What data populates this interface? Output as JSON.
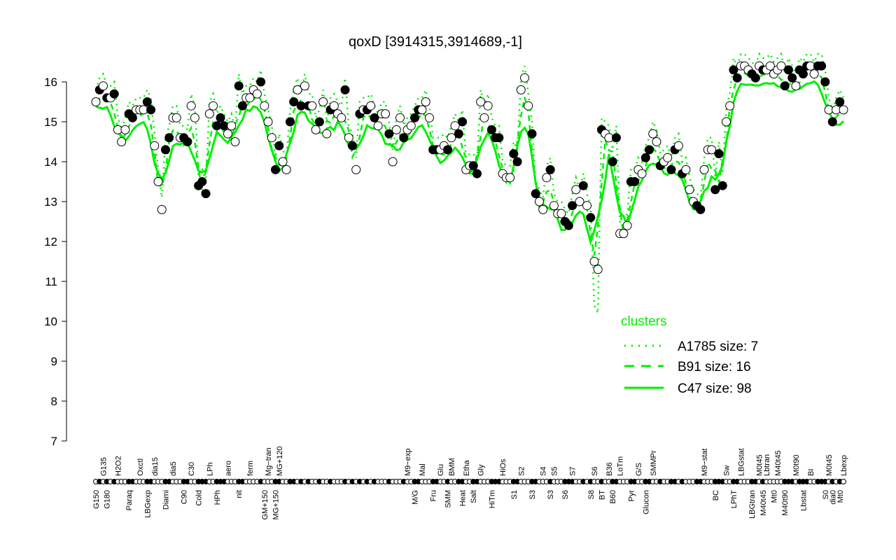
{
  "chart_data": {
    "type": "scatter",
    "title": "qoxD [3914315,3914689,-1]",
    "xlabel": "",
    "ylabel": "",
    "ylim": [
      7,
      16.6
    ],
    "yticks": [
      7,
      8,
      9,
      10,
      11,
      12,
      13,
      14,
      15,
      16
    ],
    "grid": false,
    "legend": {
      "title": "clusters",
      "placement": "bottom-right",
      "color": "#00ee00",
      "entries": [
        {
          "label": "A1785 size: 7",
          "style": "dotted"
        },
        {
          "label": "B91 size: 16",
          "style": "dashed"
        },
        {
          "label": "C47 size: 98",
          "style": "solid"
        }
      ]
    },
    "points": [
      [
        15.5,
        0,
        "G150",
        "b"
      ],
      [
        15.8,
        1,
        "",
        ""
      ],
      [
        15.9,
        0,
        "G135",
        "t"
      ],
      [
        15.6,
        1,
        "G180",
        "b"
      ],
      [
        15.6,
        0,
        "",
        ""
      ],
      [
        15.7,
        1,
        "",
        ""
      ],
      [
        14.8,
        0,
        "H2O2",
        "t"
      ],
      [
        14.5,
        0,
        "",
        ""
      ],
      [
        14.8,
        0,
        "",
        ""
      ],
      [
        15.2,
        1,
        "Paraq",
        "b"
      ],
      [
        15.1,
        1,
        "",
        ""
      ],
      [
        15.3,
        0,
        "",
        ""
      ],
      [
        15.3,
        0,
        "Oxctl",
        "t"
      ],
      [
        15.3,
        0,
        "",
        ""
      ],
      [
        15.5,
        1,
        "LBGexp",
        "b"
      ],
      [
        15.3,
        1,
        "",
        ""
      ],
      [
        14.4,
        0,
        "dia15",
        "t"
      ],
      [
        13.5,
        0,
        "",
        ""
      ],
      [
        12.8,
        0,
        "",
        ""
      ],
      [
        14.3,
        1,
        "Diami",
        "b"
      ],
      [
        14.6,
        1,
        "",
        ""
      ],
      [
        15.1,
        0,
        "dia5",
        "t"
      ],
      [
        15.1,
        0,
        "",
        ""
      ],
      [
        14.6,
        0,
        "",
        ""
      ],
      [
        14.6,
        1,
        "C90",
        "b"
      ],
      [
        14.5,
        1,
        "",
        ""
      ],
      [
        15.4,
        0,
        "C30",
        "t"
      ],
      [
        15.1,
        0,
        "",
        ""
      ],
      [
        13.4,
        1,
        "Cold",
        "b"
      ],
      [
        13.5,
        1,
        "",
        ""
      ],
      [
        13.2,
        1,
        "",
        ""
      ],
      [
        15.2,
        0,
        "LPh",
        "t"
      ],
      [
        15.4,
        0,
        "",
        ""
      ],
      [
        14.9,
        1,
        "HPh",
        "b"
      ],
      [
        15.1,
        1,
        "",
        ""
      ],
      [
        14.9,
        1,
        "",
        ""
      ],
      [
        14.7,
        0,
        "aero",
        "t"
      ],
      [
        14.9,
        0,
        "",
        ""
      ],
      [
        14.5,
        0,
        "",
        ""
      ],
      [
        15.9,
        1,
        "nit",
        "b"
      ],
      [
        15.4,
        1,
        "",
        ""
      ],
      [
        15.6,
        0,
        "",
        ""
      ],
      [
        15.6,
        0,
        "ferm",
        "t"
      ],
      [
        15.8,
        0,
        "",
        ""
      ],
      [
        15.7,
        0,
        "",
        ""
      ],
      [
        16.0,
        1,
        "",
        ""
      ],
      [
        15.4,
        0,
        "GM+150",
        "b"
      ],
      [
        15.0,
        0,
        "Mg−tran",
        "t"
      ],
      [
        14.6,
        0,
        "",
        ""
      ],
      [
        13.8,
        1,
        "MG+150",
        "b"
      ],
      [
        14.4,
        1,
        "MG+120",
        "t"
      ],
      [
        14.0,
        0,
        "",
        ""
      ],
      [
        13.8,
        0,
        "",
        ""
      ],
      [
        15.0,
        1,
        "",
        ""
      ],
      [
        15.5,
        1,
        "",
        ""
      ],
      [
        15.8,
        0,
        "",
        ""
      ],
      [
        15.4,
        1,
        "",
        ""
      ],
      [
        15.9,
        0,
        "",
        ""
      ],
      [
        15.4,
        1,
        "",
        ""
      ],
      [
        15.4,
        0,
        "",
        ""
      ],
      [
        14.8,
        0,
        "",
        ""
      ],
      [
        15.0,
        1,
        "",
        ""
      ],
      [
        15.5,
        0,
        "",
        ""
      ],
      [
        14.7,
        0,
        "",
        ""
      ],
      [
        15.3,
        1,
        "",
        ""
      ],
      [
        15.4,
        0,
        "",
        ""
      ],
      [
        15.2,
        0,
        "",
        ""
      ],
      [
        15.1,
        0,
        "",
        ""
      ],
      [
        15.8,
        1,
        "",
        ""
      ],
      [
        14.6,
        0,
        "",
        ""
      ],
      [
        14.4,
        1,
        "",
        ""
      ],
      [
        13.8,
        0,
        "",
        ""
      ],
      [
        15.2,
        1,
        "",
        ""
      ],
      [
        15.3,
        0,
        "",
        ""
      ],
      [
        15.3,
        1,
        "",
        ""
      ],
      [
        15.4,
        0,
        "",
        ""
      ],
      [
        15.1,
        1,
        "",
        ""
      ],
      [
        14.9,
        0,
        "",
        ""
      ],
      [
        15.2,
        0,
        "",
        ""
      ],
      [
        15.2,
        0,
        "",
        ""
      ],
      [
        14.7,
        1,
        "",
        ""
      ],
      [
        14.0,
        0,
        "",
        ""
      ],
      [
        14.8,
        0,
        "",
        ""
      ],
      [
        15.1,
        0,
        "",
        ""
      ],
      [
        14.6,
        1,
        "",
        ""
      ],
      [
        14.8,
        0,
        "M9−exp",
        "t"
      ],
      [
        14.9,
        0,
        "",
        ""
      ],
      [
        15.1,
        1,
        "M/G",
        "b"
      ],
      [
        15.3,
        1,
        "",
        ""
      ],
      [
        15.3,
        0,
        "Mal",
        "t"
      ],
      [
        15.5,
        0,
        "",
        ""
      ],
      [
        15.1,
        0,
        "",
        ""
      ],
      [
        14.3,
        1,
        "Fru",
        "b"
      ],
      [
        14.3,
        1,
        "",
        ""
      ],
      [
        14.3,
        0,
        "Glu",
        "t"
      ],
      [
        14.4,
        0,
        "",
        ""
      ],
      [
        14.3,
        1,
        "SMM",
        "b"
      ],
      [
        14.6,
        0,
        "BMM",
        "t"
      ],
      [
        14.9,
        0,
        "",
        ""
      ],
      [
        14.7,
        1,
        "",
        ""
      ],
      [
        15.0,
        1,
        "Heat",
        "b"
      ],
      [
        13.8,
        0,
        "Etha",
        "t"
      ],
      [
        13.9,
        0,
        "",
        ""
      ],
      [
        13.9,
        1,
        "Salt",
        "b"
      ],
      [
        13.7,
        1,
        "",
        ""
      ],
      [
        15.5,
        0,
        "Gly",
        "t"
      ],
      [
        15.1,
        0,
        "",
        ""
      ],
      [
        15.4,
        0,
        "",
        ""
      ],
      [
        14.8,
        1,
        "HiTm",
        "b"
      ],
      [
        14.6,
        1,
        "",
        ""
      ],
      [
        14.6,
        1,
        "",
        ""
      ],
      [
        13.7,
        0,
        "HiOs",
        "t"
      ],
      [
        13.6,
        0,
        "",
        ""
      ],
      [
        13.6,
        0,
        "",
        ""
      ],
      [
        14.2,
        1,
        "S1",
        "b"
      ],
      [
        14.0,
        1,
        "",
        ""
      ],
      [
        15.8,
        0,
        "S2",
        "t"
      ],
      [
        16.1,
        0,
        "",
        ""
      ],
      [
        15.4,
        0,
        "",
        ""
      ],
      [
        14.7,
        1,
        "S3",
        "b"
      ],
      [
        13.2,
        1,
        "",
        ""
      ],
      [
        13.0,
        0,
        "",
        ""
      ],
      [
        12.8,
        0,
        "S4",
        "t"
      ],
      [
        13.6,
        0,
        "",
        ""
      ],
      [
        13.8,
        1,
        "S3",
        "b"
      ],
      [
        12.9,
        0,
        "S5",
        "t"
      ],
      [
        12.7,
        0,
        "",
        ""
      ],
      [
        12.7,
        0,
        "",
        ""
      ],
      [
        12.5,
        1,
        "S6",
        "b"
      ],
      [
        12.4,
        1,
        "",
        ""
      ],
      [
        12.9,
        1,
        "S7",
        "t"
      ],
      [
        13.3,
        0,
        "",
        ""
      ],
      [
        13.0,
        0,
        "",
        ""
      ],
      [
        13.4,
        1,
        "",
        ""
      ],
      [
        12.9,
        0,
        "",
        ""
      ],
      [
        12.6,
        1,
        "S8",
        "b"
      ],
      [
        11.5,
        0,
        "S6",
        "t"
      ],
      [
        11.3,
        0,
        "",
        ""
      ],
      [
        14.8,
        1,
        "BT",
        "b"
      ],
      [
        14.7,
        0,
        "",
        ""
      ],
      [
        14.6,
        0,
        "B36",
        "t"
      ],
      [
        14.0,
        1,
        "B60",
        "b"
      ],
      [
        14.6,
        1,
        "",
        ""
      ],
      [
        12.2,
        0,
        "LoTm",
        "t"
      ],
      [
        12.2,
        0,
        "",
        ""
      ],
      [
        12.4,
        0,
        "",
        ""
      ],
      [
        13.5,
        1,
        "Pyr",
        "b"
      ],
      [
        13.5,
        1,
        "",
        ""
      ],
      [
        13.8,
        0,
        "G/S",
        "t"
      ],
      [
        13.7,
        0,
        "",
        ""
      ],
      [
        14.1,
        1,
        "Glucon",
        "b"
      ],
      [
        14.3,
        1,
        "",
        ""
      ],
      [
        14.7,
        0,
        "SMMPr",
        "t"
      ],
      [
        14.5,
        0,
        "",
        ""
      ],
      [
        13.9,
        1,
        "",
        ""
      ],
      [
        14.0,
        0,
        "",
        ""
      ],
      [
        14.1,
        0,
        "",
        ""
      ],
      [
        13.8,
        1,
        "",
        ""
      ],
      [
        14.3,
        1,
        "",
        ""
      ],
      [
        14.4,
        0,
        "",
        ""
      ],
      [
        13.7,
        1,
        "",
        ""
      ],
      [
        13.8,
        0,
        "",
        ""
      ],
      [
        13.3,
        0,
        "",
        ""
      ],
      [
        13.0,
        0,
        "",
        ""
      ],
      [
        12.9,
        1,
        "",
        ""
      ],
      [
        12.8,
        1,
        "",
        ""
      ],
      [
        13.8,
        0,
        "M9−stat",
        "t"
      ],
      [
        14.3,
        0,
        "",
        ""
      ],
      [
        14.3,
        0,
        "",
        ""
      ],
      [
        13.3,
        1,
        "BC",
        "b"
      ],
      [
        14.2,
        1,
        "",
        ""
      ],
      [
        13.4,
        1,
        "",
        ""
      ],
      [
        15.0,
        0,
        "Sw",
        "t"
      ],
      [
        15.4,
        0,
        "",
        ""
      ],
      [
        16.3,
        1,
        "LPhT",
        "b"
      ],
      [
        16.1,
        1,
        "",
        ""
      ],
      [
        16.4,
        0,
        "LBGstat",
        "t"
      ],
      [
        16.4,
        0,
        "",
        ""
      ],
      [
        16.3,
        0,
        "",
        ""
      ],
      [
        16.2,
        1,
        "LBGtran",
        "b"
      ],
      [
        16.1,
        1,
        "",
        ""
      ],
      [
        16.4,
        0,
        "M0t45",
        "t"
      ],
      [
        16.3,
        1,
        "M40t45",
        "b"
      ],
      [
        16.3,
        0,
        "Lbtran",
        "t"
      ],
      [
        16.4,
        0,
        "",
        ""
      ],
      [
        16.2,
        0,
        "Mt0",
        "b"
      ],
      [
        16.3,
        0,
        "M40t45",
        "t"
      ],
      [
        16.4,
        0,
        "",
        ""
      ],
      [
        15.9,
        1,
        "M40t90",
        "b"
      ],
      [
        16.3,
        1,
        "",
        ""
      ],
      [
        16.1,
        1,
        "",
        ""
      ],
      [
        15.9,
        0,
        "M0t90",
        "t"
      ],
      [
        16.3,
        1,
        "",
        ""
      ],
      [
        16.2,
        1,
        "Lbstat",
        "b"
      ],
      [
        16.4,
        1,
        "",
        ""
      ],
      [
        16.4,
        0,
        "BI",
        "t"
      ],
      [
        16.2,
        0,
        "",
        ""
      ],
      [
        16.4,
        1,
        "",
        ""
      ],
      [
        16.4,
        1,
        "",
        ""
      ],
      [
        16.0,
        1,
        "S0",
        "b"
      ],
      [
        15.3,
        0,
        "M0t45",
        "t"
      ],
      [
        15.0,
        1,
        "dia0",
        "b"
      ],
      [
        15.3,
        0,
        "",
        ""
      ],
      [
        15.5,
        1,
        "Mt0",
        "b"
      ],
      [
        15.3,
        0,
        "Lbexp",
        "t"
      ]
    ]
  }
}
